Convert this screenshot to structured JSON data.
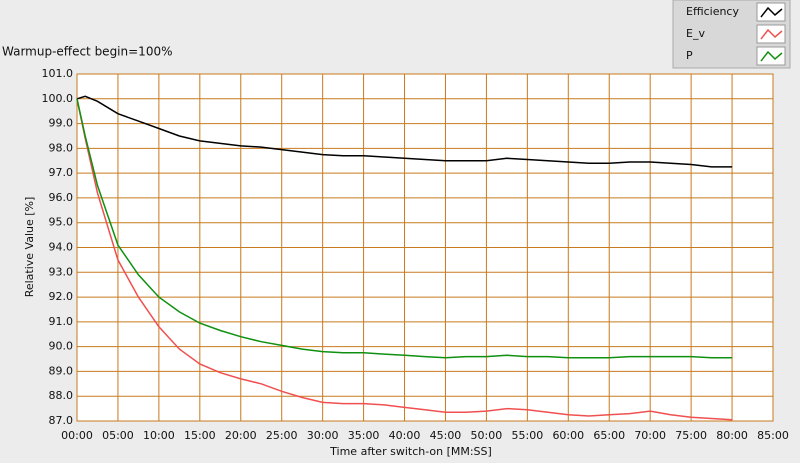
{
  "chart_data": {
    "type": "line",
    "title": "Warmup-effect begin=100%",
    "x_label": "Time after switch-on [MM:SS]",
    "y_label": "Relative Value [%]",
    "x": [
      0,
      1,
      2.5,
      5,
      7.5,
      10,
      12.5,
      15,
      17.5,
      20,
      22.5,
      25,
      27.5,
      30,
      32.5,
      35,
      37.5,
      40,
      42.5,
      45,
      47.5,
      50,
      52.5,
      55,
      57.5,
      60,
      62.5,
      65,
      67.5,
      70,
      72.5,
      75,
      77.5,
      80
    ],
    "series": [
      {
        "name": "Efficiency",
        "color": "#000000",
        "values": [
          100.0,
          100.1,
          99.9,
          99.4,
          99.1,
          98.8,
          98.5,
          98.3,
          98.2,
          98.1,
          98.05,
          97.95,
          97.85,
          97.75,
          97.7,
          97.7,
          97.65,
          97.6,
          97.55,
          97.5,
          97.5,
          97.5,
          97.6,
          97.55,
          97.5,
          97.45,
          97.4,
          97.4,
          97.45,
          97.45,
          97.4,
          97.35,
          97.25,
          97.25
        ]
      },
      {
        "name": "E_v",
        "color": "#f05050",
        "values": [
          100.0,
          98.4,
          96.2,
          93.5,
          92.0,
          90.8,
          89.9,
          89.3,
          88.95,
          88.7,
          88.5,
          88.2,
          87.95,
          87.75,
          87.7,
          87.7,
          87.65,
          87.55,
          87.45,
          87.35,
          87.35,
          87.4,
          87.5,
          87.45,
          87.35,
          87.25,
          87.2,
          87.25,
          87.3,
          87.4,
          87.25,
          87.15,
          87.1,
          87.05
        ]
      },
      {
        "name": "P",
        "color": "#109010",
        "values": [
          100.0,
          98.5,
          96.5,
          94.1,
          92.9,
          92.0,
          91.4,
          90.95,
          90.65,
          90.4,
          90.2,
          90.05,
          89.9,
          89.8,
          89.75,
          89.75,
          89.7,
          89.65,
          89.6,
          89.55,
          89.6,
          89.6,
          89.65,
          89.6,
          89.6,
          89.55,
          89.55,
          89.55,
          89.6,
          89.6,
          89.6,
          89.6,
          89.55,
          89.55
        ]
      }
    ],
    "xlim": [
      0,
      85
    ],
    "xticks": [
      {
        "value": 0,
        "label": "00:00"
      },
      {
        "value": 5,
        "label": "05:00"
      },
      {
        "value": 10,
        "label": "10:00"
      },
      {
        "value": 15,
        "label": "15:00"
      },
      {
        "value": 20,
        "label": "20:00"
      },
      {
        "value": 25,
        "label": "25:00"
      },
      {
        "value": 30,
        "label": "30:00"
      },
      {
        "value": 35,
        "label": "35:00"
      },
      {
        "value": 40,
        "label": "40:00"
      },
      {
        "value": 45,
        "label": "45:00"
      },
      {
        "value": 50,
        "label": "50:00"
      },
      {
        "value": 55,
        "label": "55:00"
      },
      {
        "value": 60,
        "label": "60:00"
      },
      {
        "value": 65,
        "label": "65:00"
      },
      {
        "value": 70,
        "label": "70:00"
      },
      {
        "value": 75,
        "label": "75:00"
      },
      {
        "value": 80,
        "label": "80:00"
      },
      {
        "value": 85,
        "label": "85:00"
      }
    ],
    "ylim": [
      87,
      101
    ],
    "yticks": [
      {
        "value": 87,
        "label": "87.0"
      },
      {
        "value": 88,
        "label": "88.0"
      },
      {
        "value": 89,
        "label": "89.0"
      },
      {
        "value": 90,
        "label": "90.0"
      },
      {
        "value": 91,
        "label": "91.0"
      },
      {
        "value": 92,
        "label": "92.0"
      },
      {
        "value": 93,
        "label": "93.0"
      },
      {
        "value": 94,
        "label": "94.0"
      },
      {
        "value": 95,
        "label": "95.0"
      },
      {
        "value": 96,
        "label": "96.0"
      },
      {
        "value": 97,
        "label": "97.0"
      },
      {
        "value": 98,
        "label": "98.0"
      },
      {
        "value": 99,
        "label": "99.0"
      },
      {
        "value": 100,
        "label": "100.0"
      },
      {
        "value": 101,
        "label": "101.0"
      }
    ],
    "grid": true,
    "grid_color": "#c87a1e",
    "legend": "top-right"
  }
}
